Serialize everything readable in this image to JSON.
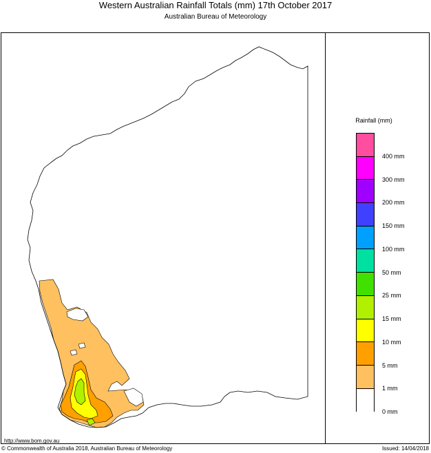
{
  "header": {
    "title": "Western Australian Rainfall Totals (mm) 17th October 2017",
    "subtitle": "Australian Bureau of Meteorology"
  },
  "legend": {
    "title": "Rainfall (mm)",
    "swatches": [
      {
        "color": "#ff4d9f"
      },
      {
        "color": "#ff00ff"
      },
      {
        "color": "#a000ff"
      },
      {
        "color": "#4040ff"
      },
      {
        "color": "#00a0ff"
      },
      {
        "color": "#00e0a0"
      },
      {
        "color": "#40e000"
      },
      {
        "color": "#b0f000"
      },
      {
        "color": "#ffff00"
      },
      {
        "color": "#ffa000"
      },
      {
        "color": "#ffc060"
      },
      {
        "color": "#ffffff"
      }
    ],
    "labels": [
      "400 mm",
      "300 mm",
      "200 mm",
      "150 mm",
      "100 mm",
      "50 mm",
      "25 mm",
      "15 mm",
      "10 mm",
      "5 mm",
      "1 mm",
      "0 mm"
    ]
  },
  "footer": {
    "url": "http://www.bom.gov.au",
    "copyright": "© Commonwealth of Australia 2018, Australian Bureau of Meteorology",
    "issued": "Issued: 14/04/2018"
  }
}
